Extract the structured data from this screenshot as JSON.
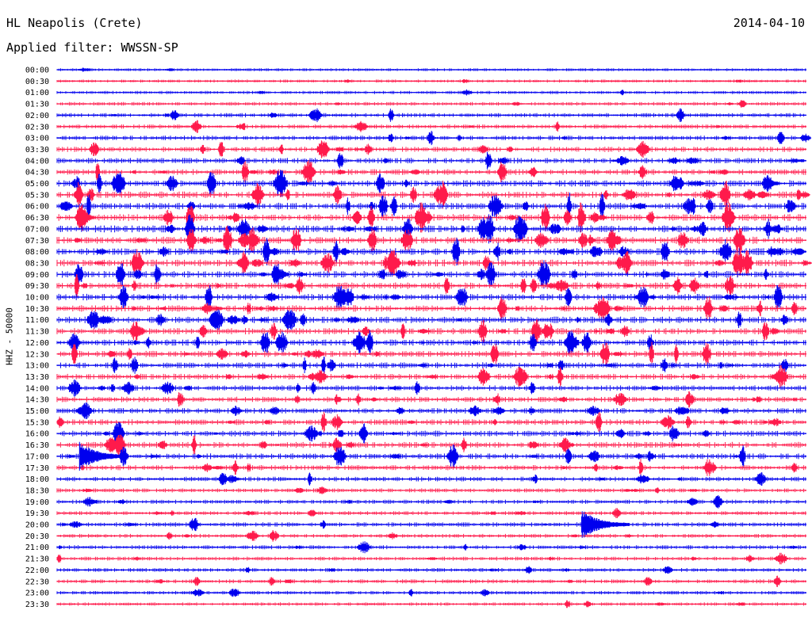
{
  "header": {
    "station": "HL Neapolis (Crete)",
    "date": "2014-04-10",
    "filter": "Applied filter: WWSSN-SP"
  },
  "chart_data": {
    "type": "line",
    "title": "HL Neapolis (Crete)",
    "subtitle": "Applied filter: WWSSN-SP",
    "xlabel": "",
    "ylabel": "HHZ - 50000",
    "tick_labels": [
      "00:00",
      "00:30",
      "01:00",
      "01:30",
      "02:00",
      "02:30",
      "03:00",
      "03:30",
      "04:00",
      "04:30",
      "05:00",
      "05:30",
      "06:00",
      "06:30",
      "07:00",
      "07:30",
      "08:00",
      "08:30",
      "09:00",
      "09:30",
      "10:00",
      "10:30",
      "11:00",
      "11:30",
      "12:00",
      "12:30",
      "13:00",
      "13:30",
      "14:00",
      "14:30",
      "15:00",
      "15:30",
      "16:00",
      "16:30",
      "17:00",
      "17:30",
      "18:00",
      "18:30",
      "19:00",
      "19:30",
      "20:00",
      "20:30",
      "21:00",
      "21:30",
      "22:00",
      "22:30",
      "23:00",
      "23:30"
    ],
    "colors": {
      "even_traces": "#0000ee",
      "odd_traces": "#ff1a4b"
    },
    "grid": false,
    "legend": "none",
    "activity_per_trace": [
      0.08,
      0.12,
      0.14,
      0.22,
      0.38,
      0.35,
      0.42,
      0.55,
      0.62,
      0.7,
      0.82,
      0.85,
      0.9,
      0.92,
      0.95,
      0.95,
      0.95,
      0.92,
      0.9,
      0.85,
      0.85,
      0.82,
      0.85,
      0.8,
      0.78,
      0.78,
      0.72,
      0.7,
      0.6,
      0.58,
      0.62,
      0.65,
      0.7,
      0.72,
      0.68,
      0.55,
      0.45,
      0.32,
      0.35,
      0.3,
      0.4,
      0.3,
      0.32,
      0.3,
      0.28,
      0.3,
      0.22,
      0.18
    ],
    "major_events": [
      {
        "time": "17:00",
        "offset_min": 0.9,
        "amplitude": "large"
      },
      {
        "time": "20:00",
        "offset_min": 21.0,
        "amplitude": "large"
      }
    ]
  }
}
